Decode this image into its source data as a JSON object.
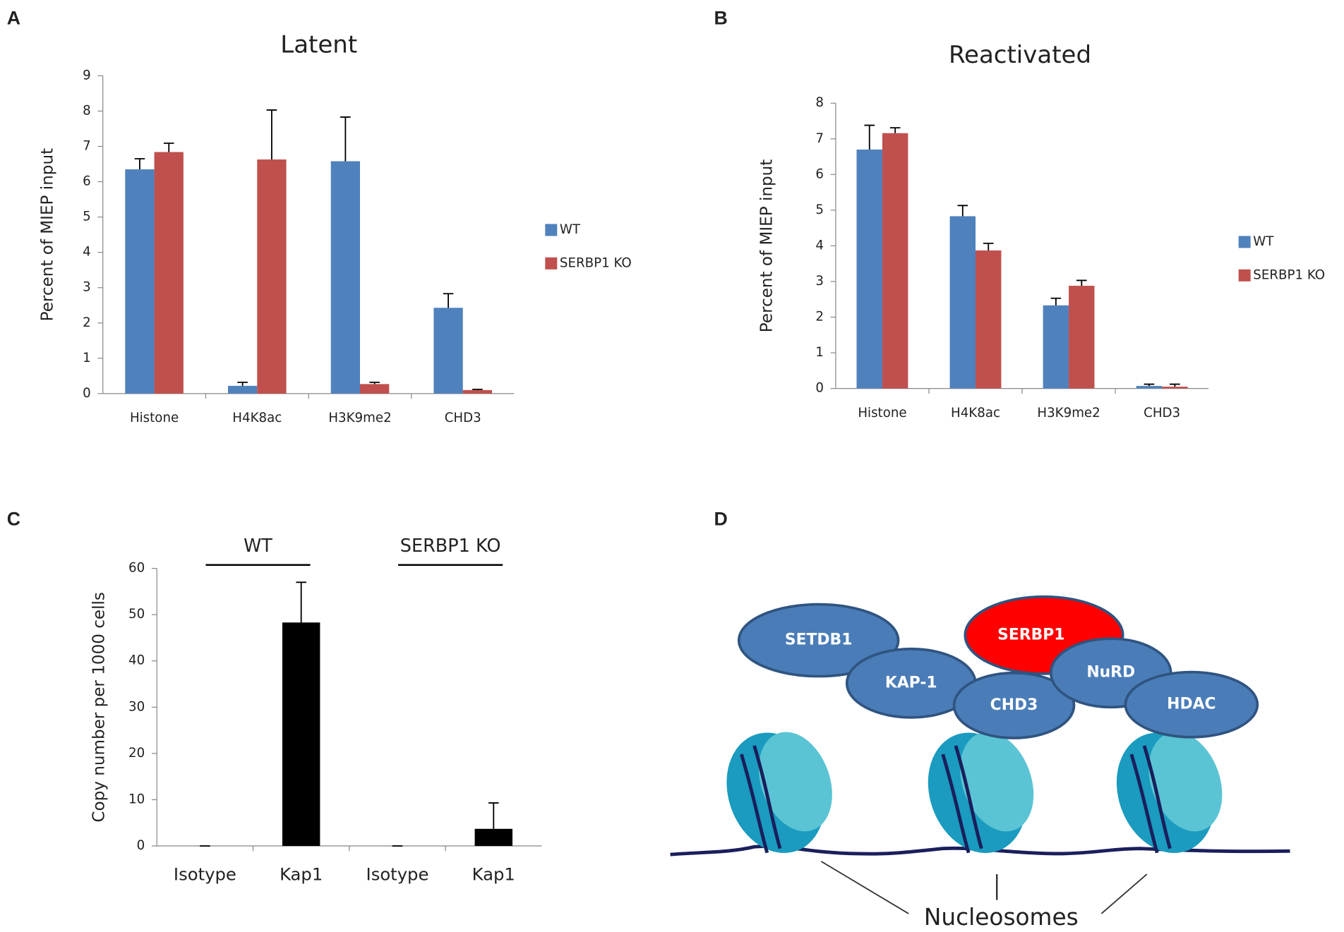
{
  "panels": [
    "A",
    "B",
    "C",
    "D"
  ],
  "chart_data": [
    {
      "type": "bar",
      "title": "Latent",
      "y_label": "Percent of MIEP input",
      "categories": [
        "Histone",
        "H4K8ac",
        "H3K9me2",
        "CHD3"
      ],
      "series": [
        {
          "name": "WT",
          "color": "#4f81bd",
          "values": [
            6.35,
            0.22,
            6.58,
            2.43
          ],
          "errors": [
            0.3,
            0.1,
            1.25,
            0.4
          ]
        },
        {
          "name": "SERBP1 KO",
          "color": "#c0504d",
          "values": [
            6.84,
            6.63,
            0.27,
            0.1
          ],
          "errors": [
            0.25,
            1.4,
            0.05,
            0.02
          ]
        }
      ],
      "ylim": [
        0,
        9
      ],
      "yticks": [
        0,
        1,
        2,
        3,
        4,
        5,
        6,
        7,
        8,
        9
      ],
      "legend": "right"
    },
    {
      "type": "bar",
      "title": "Reactivated",
      "y_label": "Percent of MIEP input",
      "categories": [
        "Histone",
        "H4K8ac",
        "H3K9me2",
        "CHD3"
      ],
      "series": [
        {
          "name": "WT",
          "color": "#4f81bd",
          "values": [
            6.7,
            4.83,
            2.33,
            0.07
          ],
          "errors": [
            0.68,
            0.3,
            0.2,
            0.05
          ]
        },
        {
          "name": "SERBP1 KO",
          "color": "#c0504d",
          "values": [
            7.16,
            3.87,
            2.88,
            0.05
          ],
          "errors": [
            0.15,
            0.2,
            0.15,
            0.07
          ]
        }
      ],
      "ylim": [
        0,
        8
      ],
      "yticks": [
        0,
        1,
        2,
        3,
        4,
        5,
        6,
        7,
        8
      ],
      "legend": "right"
    },
    {
      "type": "bar",
      "y_label": "Copy number per 1000 cells",
      "categories": [
        "Isotype",
        "Kap1",
        "Isotype",
        "Kap1"
      ],
      "groups": [
        "WT",
        "SERBP1 KO"
      ],
      "series": [
        {
          "color": "#000000",
          "values": [
            0,
            48.3,
            0,
            3.7
          ],
          "errors": [
            0,
            8.7,
            0,
            5.6
          ]
        }
      ],
      "ylim": [
        0,
        60
      ],
      "yticks": [
        0,
        10,
        20,
        30,
        40,
        50,
        60
      ]
    }
  ],
  "diagram": {
    "nodes": [
      "SETDB1",
      "KAP-1",
      "SERBP1",
      "CHD3",
      "NuRD",
      "HDAC"
    ],
    "label": "Nucleosomes"
  }
}
